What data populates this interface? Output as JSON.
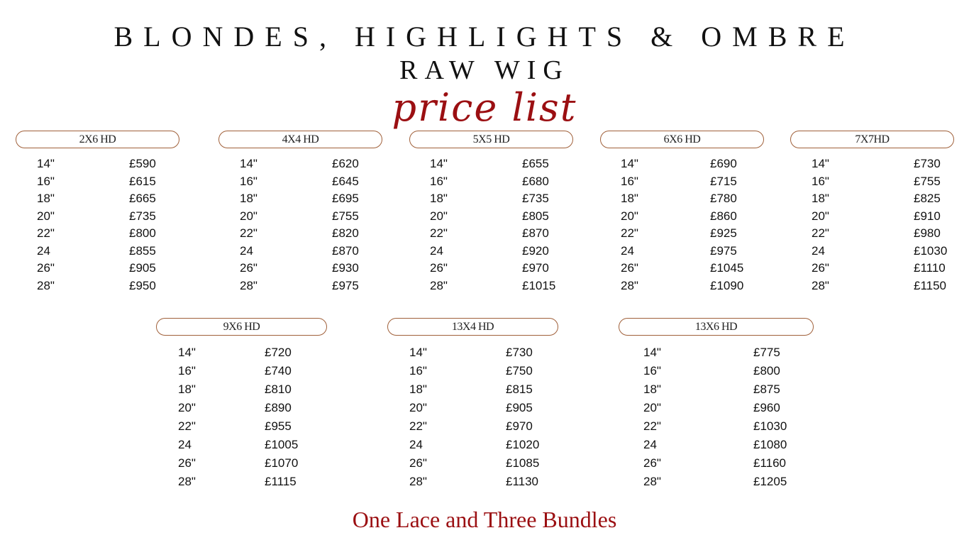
{
  "header": {
    "title": "BLONDES, HIGHLIGHTS & OMBRE",
    "subtitle": "RAW WIG",
    "script_title": "price list"
  },
  "sizes": [
    "14\"",
    "16\"",
    "18\"",
    "20\"",
    "22\"",
    "24",
    "26\"",
    "28\""
  ],
  "tables": [
    {
      "label": "2X6 HD",
      "prices": [
        "£590",
        "£615",
        "£665",
        "£735",
        "£800",
        "£855",
        "£905",
        "£950"
      ]
    },
    {
      "label": "4X4 HD",
      "prices": [
        "£620",
        "£645",
        "£695",
        "£755",
        "£820",
        "£870",
        "£930",
        "£975"
      ]
    },
    {
      "label": "5X5 HD",
      "prices": [
        "£655",
        "£680",
        "£735",
        "£805",
        "£870",
        "£920",
        "£970",
        "£1015"
      ]
    },
    {
      "label": "6X6 HD",
      "prices": [
        "£690",
        "£715",
        "£780",
        "£860",
        "£925",
        "£975",
        "£1045",
        "£1090"
      ]
    },
    {
      "label": "7X7HD",
      "prices": [
        "£730",
        "£755",
        "£825",
        "£910",
        "£980",
        "£1030",
        "£1110",
        "£1150"
      ]
    },
    {
      "label": "9X6 HD",
      "prices": [
        "£720",
        "£740",
        "£810",
        "£890",
        "£955",
        "£1005",
        "£1070",
        "£1115"
      ]
    },
    {
      "label": "13X4 HD",
      "prices": [
        "£730",
        "£750",
        "£815",
        "£905",
        "£970",
        "£1020",
        "£1085",
        "£1130"
      ]
    },
    {
      "label": "13X6 HD",
      "prices": [
        "£775",
        "£800",
        "£875",
        "£960",
        "£1030",
        "£1080",
        "£1160",
        "£1205"
      ]
    }
  ],
  "footer": "One Lace and Three Bundles",
  "colors": {
    "accent": "#9b0f12",
    "pill_border": "#a0603a"
  }
}
